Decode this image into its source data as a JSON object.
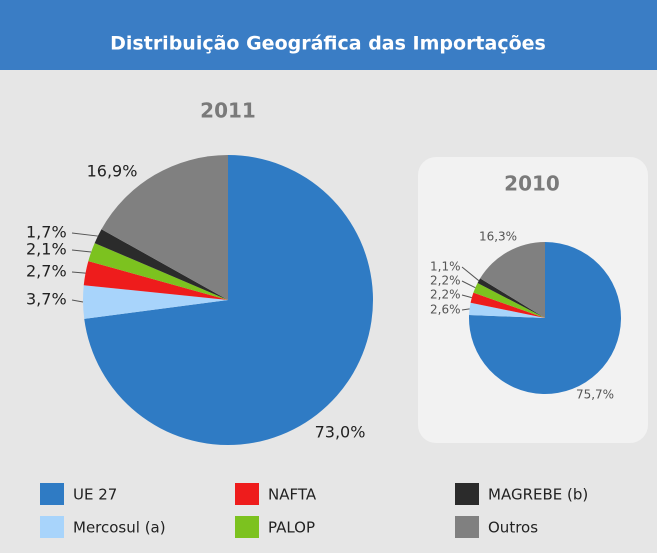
{
  "header": {
    "title": "Distribuição Geográfica das Importações"
  },
  "chart_data": [
    {
      "type": "pie",
      "title": "2011",
      "categories": [
        "UE 27",
        "Mercosul (a)",
        "NAFTA",
        "PALOP",
        "MAGREBE (b)",
        "Outros"
      ],
      "values": [
        73.0,
        3.7,
        2.7,
        2.1,
        1.7,
        16.9
      ],
      "value_labels": [
        "73,0%",
        "3,7%",
        "2,7%",
        "2,1%",
        "1,7%",
        "16,9%"
      ],
      "colors": [
        "#2f7bc4",
        "#a8d4fb",
        "#ee1c1c",
        "#7cc21f",
        "#2b2b2b",
        "#808080"
      ]
    },
    {
      "type": "pie",
      "title": "2010",
      "categories": [
        "UE 27",
        "Mercosul (a)",
        "NAFTA",
        "PALOP",
        "MAGREBE (b)",
        "Outros"
      ],
      "values": [
        75.7,
        2.6,
        2.2,
        2.2,
        1.1,
        16.3
      ],
      "value_labels": [
        "75,7%",
        "2,6%",
        "2,2%",
        "2,2%",
        "1,1%",
        "16,3%"
      ],
      "colors": [
        "#2f7bc4",
        "#a8d4fb",
        "#ee1c1c",
        "#7cc21f",
        "#2b2b2b",
        "#808080"
      ]
    }
  ]
}
